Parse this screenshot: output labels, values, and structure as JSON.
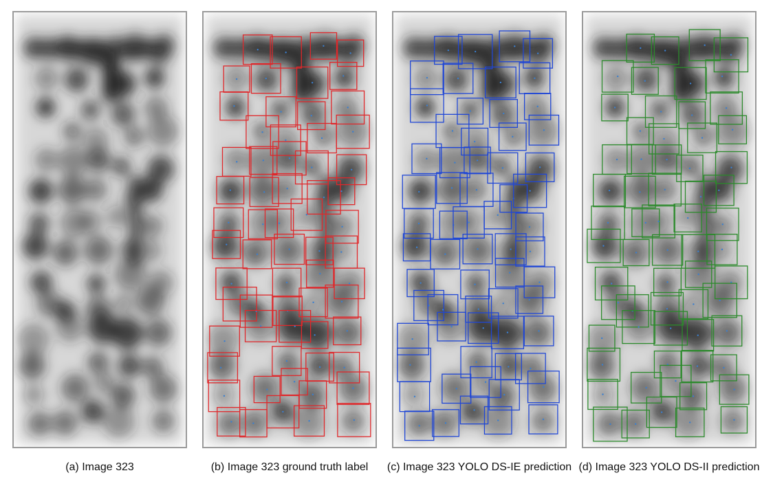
{
  "panels": [
    {
      "id": "a",
      "caption": "(a) Image 323",
      "box_color": "",
      "show_boxes": false
    },
    {
      "id": "b",
      "caption": "(b) Image 323 ground truth label",
      "box_color": "#e0272a",
      "show_boxes": true
    },
    {
      "id": "c",
      "caption": "(c) Image 323 YOLO DS-IE prediction",
      "box_color": "#1f46d6",
      "show_boxes": true
    },
    {
      "id": "d",
      "caption": "(d) Image 323 YOLO DS-II prediction",
      "box_color": "#2b8a2b",
      "show_boxes": true
    }
  ],
  "colors": {
    "frame": "#9a9a9a",
    "center_dot": "#3a7fd0",
    "blob": "#222222"
  }
}
